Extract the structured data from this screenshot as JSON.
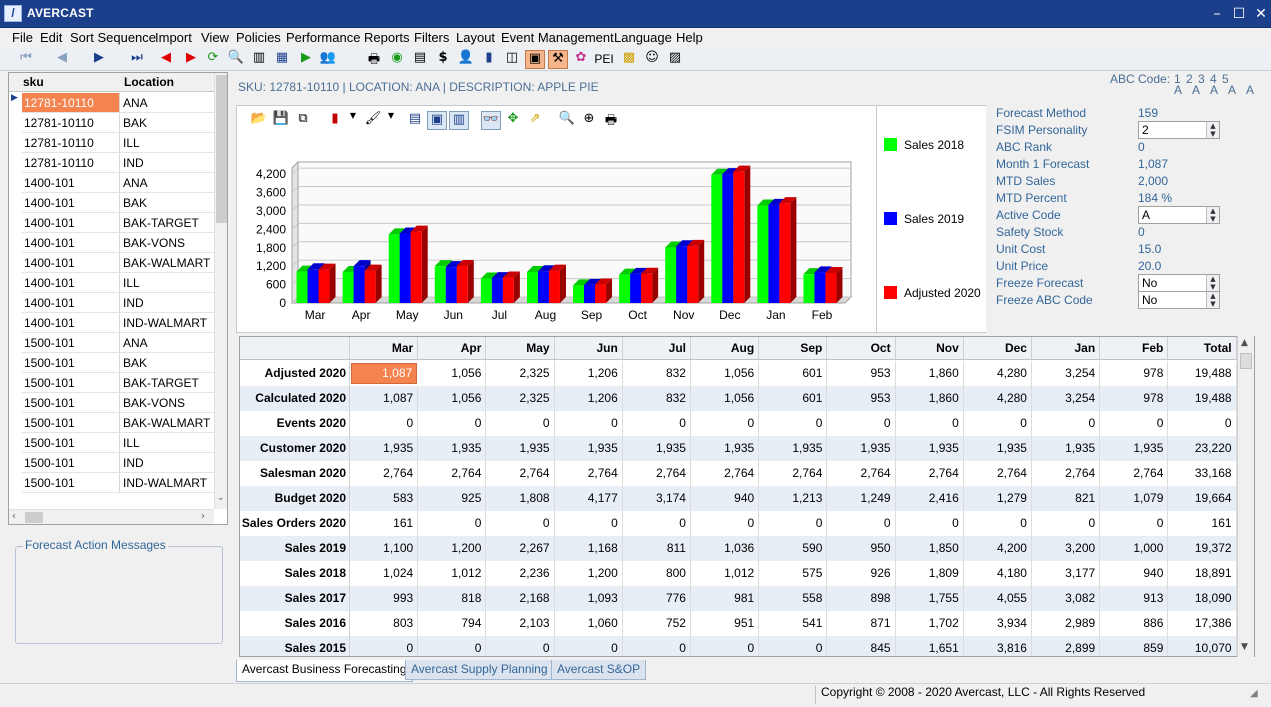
{
  "window": {
    "title": "AVERCAST",
    "app_icon": "avercast-logo"
  },
  "menu": [
    "File",
    "Edit",
    "Sort Sequence",
    "Import",
    "View",
    "Policies",
    "Performance",
    "Reports",
    "Filters",
    "Layout",
    "Event Management",
    "Language",
    "Help"
  ],
  "toolbar": {
    "pei_label": "PEI",
    "dollar_label": "$"
  },
  "sku_list": {
    "headers": [
      "sku",
      "Location"
    ],
    "rows": [
      [
        "12781-10110",
        "ANA"
      ],
      [
        "12781-10110",
        "BAK"
      ],
      [
        "12781-10110",
        "ILL"
      ],
      [
        "12781-10110",
        "IND"
      ],
      [
        "1400-101",
        "ANA"
      ],
      [
        "1400-101",
        "BAK"
      ],
      [
        "1400-101",
        "BAK-TARGET"
      ],
      [
        "1400-101",
        "BAK-VONS"
      ],
      [
        "1400-101",
        "BAK-WALMART"
      ],
      [
        "1400-101",
        "ILL"
      ],
      [
        "1400-101",
        "IND"
      ],
      [
        "1400-101",
        "IND-WALMART"
      ],
      [
        "1500-101",
        "ANA"
      ],
      [
        "1500-101",
        "BAK"
      ],
      [
        "1500-101",
        "BAK-TARGET"
      ],
      [
        "1500-101",
        "BAK-VONS"
      ],
      [
        "1500-101",
        "BAK-WALMART"
      ],
      [
        "1500-101",
        "ILL"
      ],
      [
        "1500-101",
        "IND"
      ],
      [
        "1500-101",
        "IND-WALMART"
      ]
    ]
  },
  "forecast_action_messages": {
    "label": "Forecast Action Messages"
  },
  "sku_header": {
    "text": "SKU: 12781-10110  |  LOCATION: ANA  |  DESCRIPTION: APPLE PIE"
  },
  "abc": {
    "label": "ABC Code:",
    "digits": "1 2 3 4 5",
    "letters": "A A A A A"
  },
  "legend": [
    {
      "name": "Sales 2018",
      "color": "#00ff00"
    },
    {
      "name": "Sales 2019",
      "color": "#0000ff"
    },
    {
      "name": "Adjusted 2020",
      "color": "#ff0000"
    }
  ],
  "chart_data": {
    "type": "bar",
    "categories": [
      "Mar",
      "Apr",
      "May",
      "Jun",
      "Jul",
      "Aug",
      "Sep",
      "Oct",
      "Nov",
      "Dec",
      "Jan",
      "Feb"
    ],
    "series": [
      {
        "name": "Sales 2018",
        "values": [
          1024,
          1012,
          2236,
          1200,
          800,
          1012,
          575,
          926,
          1809,
          4180,
          3177,
          940
        ]
      },
      {
        "name": "Sales 2019",
        "values": [
          1100,
          1200,
          2267,
          1168,
          811,
          1036,
          590,
          950,
          1850,
          4200,
          3200,
          1000
        ]
      },
      {
        "name": "Adjusted 2020",
        "values": [
          1087,
          1056,
          2325,
          1206,
          832,
          1056,
          601,
          953,
          1860,
          4280,
          3254,
          978
        ]
      }
    ],
    "yticks": [
      "0",
      "600",
      "1,200",
      "1,800",
      "2,400",
      "3,000",
      "3,600",
      "4,200"
    ],
    "ylim": [
      0,
      4400
    ],
    "colors": [
      "#00ff00",
      "#0000ff",
      "#ff0000"
    ]
  },
  "info": {
    "labels": [
      "Forecast Method",
      "FSIM Personality",
      "ABC Rank",
      "Month 1 Forecast",
      "MTD Sales",
      "MTD Percent",
      "Active Code",
      "Safety Stock",
      "Unit Cost",
      "Unit Price",
      "Freeze Forecast",
      "Freeze ABC Code"
    ],
    "values": [
      "159",
      "2",
      "0",
      "1,087",
      "2,000",
      "184 %",
      "A",
      "0",
      "15.0",
      "20.0",
      "No",
      "No"
    ]
  },
  "grid": {
    "headers": [
      "Mar",
      "Apr",
      "May",
      "Jun",
      "Jul",
      "Aug",
      "Sep",
      "Oct",
      "Nov",
      "Dec",
      "Jan",
      "Feb",
      "Total"
    ],
    "rows": [
      {
        "label": "Adjusted 2020",
        "values": [
          "1,087",
          "1,056",
          "2,325",
          "1,206",
          "832",
          "1,056",
          "601",
          "953",
          "1,860",
          "4,280",
          "3,254",
          "978",
          "19,488"
        ]
      },
      {
        "label": "Calculated 2020",
        "values": [
          "1,087",
          "1,056",
          "2,325",
          "1,206",
          "832",
          "1,056",
          "601",
          "953",
          "1,860",
          "4,280",
          "3,254",
          "978",
          "19,488"
        ]
      },
      {
        "label": "Events 2020",
        "values": [
          "0",
          "0",
          "0",
          "0",
          "0",
          "0",
          "0",
          "0",
          "0",
          "0",
          "0",
          "0",
          "0"
        ]
      },
      {
        "label": "Customer 2020",
        "values": [
          "1,935",
          "1,935",
          "1,935",
          "1,935",
          "1,935",
          "1,935",
          "1,935",
          "1,935",
          "1,935",
          "1,935",
          "1,935",
          "1,935",
          "23,220"
        ]
      },
      {
        "label": "Salesman 2020",
        "values": [
          "2,764",
          "2,764",
          "2,764",
          "2,764",
          "2,764",
          "2,764",
          "2,764",
          "2,764",
          "2,764",
          "2,764",
          "2,764",
          "2,764",
          "33,168"
        ]
      },
      {
        "label": "Budget 2020",
        "values": [
          "583",
          "925",
          "1,808",
          "4,177",
          "3,174",
          "940",
          "1,213",
          "1,249",
          "2,416",
          "1,279",
          "821",
          "1,079",
          "19,664"
        ]
      },
      {
        "label": "Sales Orders 2020",
        "values": [
          "161",
          "0",
          "0",
          "0",
          "0",
          "0",
          "0",
          "0",
          "0",
          "0",
          "0",
          "0",
          "161"
        ]
      },
      {
        "label": "Sales 2019",
        "values": [
          "1,100",
          "1,200",
          "2,267",
          "1,168",
          "811",
          "1,036",
          "590",
          "950",
          "1,850",
          "4,200",
          "3,200",
          "1,000",
          "19,372"
        ]
      },
      {
        "label": "Sales 2018",
        "values": [
          "1,024",
          "1,012",
          "2,236",
          "1,200",
          "800",
          "1,012",
          "575",
          "926",
          "1,809",
          "4,180",
          "3,177",
          "940",
          "18,891"
        ]
      },
      {
        "label": "Sales 2017",
        "values": [
          "993",
          "818",
          "2,168",
          "1,093",
          "776",
          "981",
          "558",
          "898",
          "1,755",
          "4,055",
          "3,082",
          "913",
          "18,090"
        ]
      },
      {
        "label": "Sales 2016",
        "values": [
          "803",
          "794",
          "2,103",
          "1,060",
          "752",
          "951",
          "541",
          "871",
          "1,702",
          "3,934",
          "2,989",
          "886",
          "17,386"
        ]
      },
      {
        "label": "Sales 2015",
        "values": [
          "0",
          "0",
          "0",
          "0",
          "0",
          "0",
          "0",
          "845",
          "1,651",
          "3,816",
          "2,899",
          "859",
          "10,070"
        ]
      }
    ]
  },
  "tabs": [
    "Avercast Business Forecasting",
    "Avercast Supply Planning",
    "Avercast S&OP"
  ],
  "status": {
    "copyright": "Copyright © 2008 - 2020 Avercast, LLC - All Rights Reserved"
  }
}
